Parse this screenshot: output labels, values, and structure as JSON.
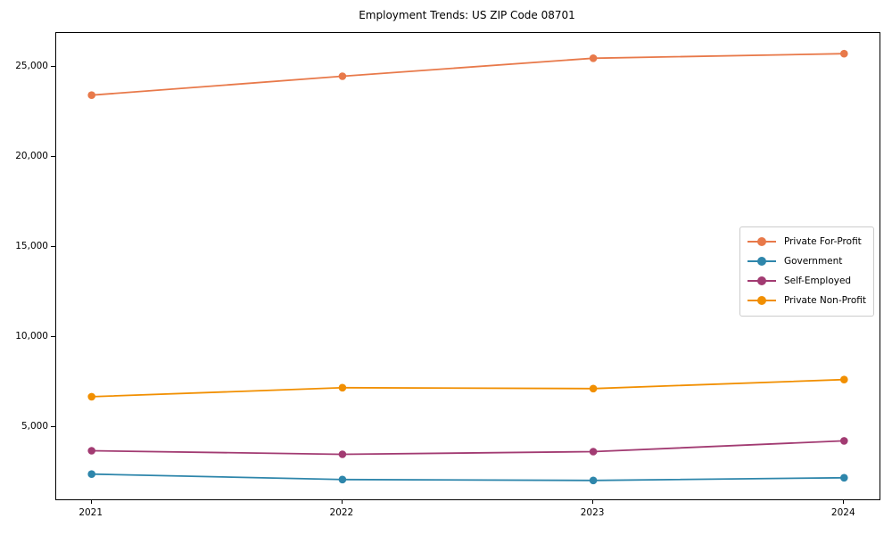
{
  "chart_data": {
    "type": "line",
    "title": "Employment Trends: US ZIP Code 08701",
    "xlabel": "",
    "ylabel": "",
    "x": [
      "2021",
      "2022",
      "2023",
      "2024"
    ],
    "series": [
      {
        "name": "Private For-Profit",
        "color": "#E8794A",
        "values": [
          23450,
          24500,
          25500,
          25750
        ]
      },
      {
        "name": "Government",
        "color": "#2E86AB",
        "values": [
          2400,
          2100,
          2050,
          2200
        ]
      },
      {
        "name": "Self-Employed",
        "color": "#A23B72",
        "values": [
          3700,
          3500,
          3650,
          4250
        ]
      },
      {
        "name": "Private Non-Profit",
        "color": "#F18F01",
        "values": [
          6700,
          7200,
          7150,
          7650
        ]
      }
    ],
    "y_ticks": [
      5000,
      10000,
      15000,
      20000,
      25000
    ],
    "y_tick_labels": [
      "5,000",
      "10,000",
      "15,000",
      "20,000",
      "25,000"
    ],
    "ylim": [
      1000,
      26900
    ],
    "grid": false,
    "legend_position": "center right",
    "marker": "circle",
    "line_width": 1.8,
    "marker_radius": 4.3
  }
}
